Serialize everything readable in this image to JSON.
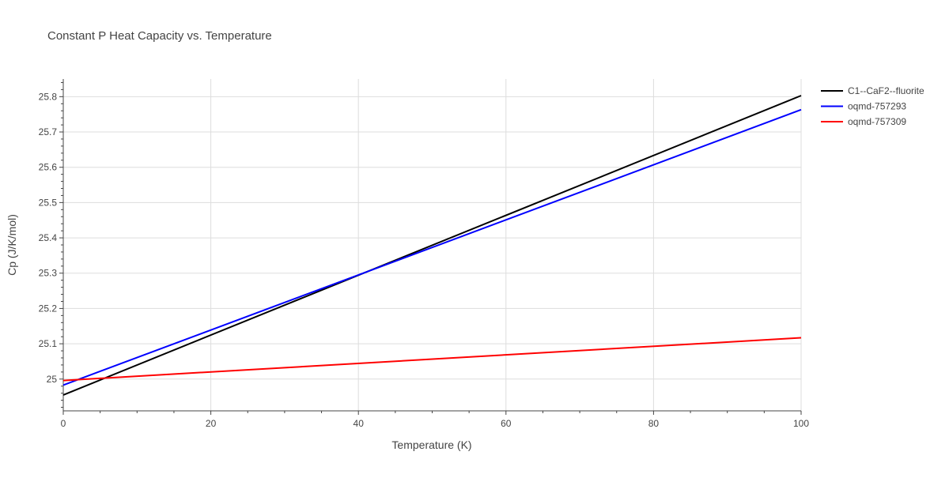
{
  "chart_data": {
    "type": "line",
    "title": "Constant P Heat Capacity vs. Temperature",
    "xlabel": "Temperature (K)",
    "ylabel": "Cp (J/K/mol)",
    "xlim": [
      0,
      100
    ],
    "ylim": [
      24.91,
      25.85
    ],
    "x_ticks": [
      0,
      20,
      40,
      60,
      80,
      100
    ],
    "y_ticks": [
      25,
      25.1,
      25.2,
      25.3,
      25.4,
      25.5,
      25.6,
      25.7,
      25.8
    ],
    "grid": true,
    "legend_position": "top-right",
    "series": [
      {
        "name": "C1--CaF2--fluorite",
        "color": "#000000",
        "x": [
          0,
          100
        ],
        "y": [
          24.955,
          25.803
        ]
      },
      {
        "name": "oqmd-757293",
        "color": "#0000ff",
        "x": [
          0,
          100
        ],
        "y": [
          24.983,
          25.763
        ]
      },
      {
        "name": "oqmd-757309",
        "color": "#ff0000",
        "x": [
          0,
          100
        ],
        "y": [
          24.996,
          25.117
        ]
      }
    ]
  }
}
